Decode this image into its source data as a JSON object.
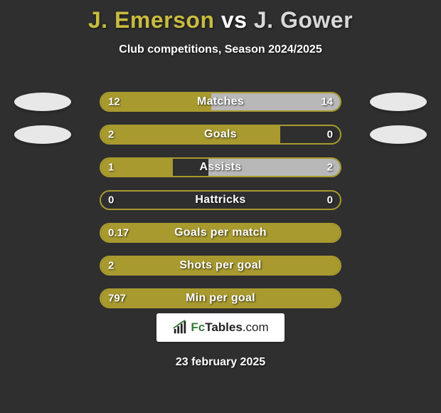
{
  "colors": {
    "background": "#2f2f2f",
    "player1": "#a89a2e",
    "player2": "#b8b8b8",
    "title_p1": "#c9bb3f",
    "title_vs": "#ffffff",
    "title_p2": "#d8d8d8",
    "track_border": "#a89a2e",
    "avatar": "#e8e8e8",
    "logo_bg": "#ffffff",
    "logo_accent": "#3a7a3a"
  },
  "title": {
    "p1": "J. Emerson",
    "vs": "vs",
    "p2": "J. Gower"
  },
  "subtitle": "Club competitions, Season 2024/2025",
  "logo": {
    "text1": "Fc",
    "text2": "Tables",
    "text3": ".com"
  },
  "date": "23 february 2025",
  "stats": [
    {
      "label": "Matches",
      "v1": "12",
      "v2": "14",
      "p1_pct": 46,
      "p2_pct": 54,
      "show_avatars": true
    },
    {
      "label": "Goals",
      "v1": "2",
      "v2": "0",
      "p1_pct": 75,
      "p2_pct": 0,
      "show_avatars": true
    },
    {
      "label": "Assists",
      "v1": "1",
      "v2": "2",
      "p1_pct": 30,
      "p2_pct": 55,
      "show_avatars": false
    },
    {
      "label": "Hattricks",
      "v1": "0",
      "v2": "0",
      "p1_pct": 0,
      "p2_pct": 0,
      "show_avatars": false
    },
    {
      "label": "Goals per match",
      "v1": "0.17",
      "v2": "",
      "p1_pct": 100,
      "p2_pct": 0,
      "show_avatars": false
    },
    {
      "label": "Shots per goal",
      "v1": "2",
      "v2": "",
      "p1_pct": 100,
      "p2_pct": 0,
      "show_avatars": false
    },
    {
      "label": "Min per goal",
      "v1": "797",
      "v2": "",
      "p1_pct": 100,
      "p2_pct": 0,
      "show_avatars": false
    }
  ]
}
